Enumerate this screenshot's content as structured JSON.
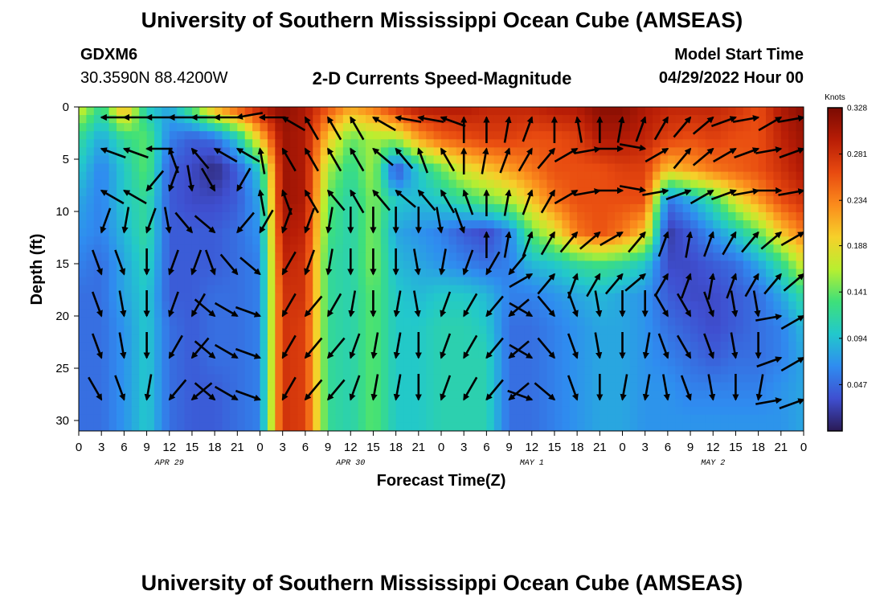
{
  "header": {
    "title": "University of Southern Mississippi Ocean Cube (AMSEAS)",
    "station_id": "GDXM6",
    "station_coords": "30.3590N  88.4200W",
    "chart_title": "2-D Currents Speed-Magnitude",
    "model_start_label": "Model Start Time",
    "model_start_value": "04/29/2022 Hour 00"
  },
  "footer": {
    "title": "University of Southern Mississippi Ocean Cube (AMSEAS)"
  },
  "chart_data": {
    "type": "heatmap",
    "title": "2-D Currents Speed-Magnitude",
    "xlabel": "Forecast Time(Z)",
    "ylabel": "Depth (ft)",
    "x_ticks": [
      "0",
      "3",
      "6",
      "9",
      "12",
      "15",
      "18",
      "21",
      "0",
      "3",
      "6",
      "9",
      "12",
      "15",
      "18",
      "21",
      "0",
      "3",
      "6",
      "9",
      "12",
      "15",
      "18",
      "21",
      "0",
      "3",
      "6",
      "9",
      "12",
      "15",
      "18",
      "21",
      "0"
    ],
    "x_range_hours": [
      0,
      96
    ],
    "day_labels": [
      {
        "label": "APR 29",
        "hour": 12
      },
      {
        "label": "APR 30",
        "hour": 36
      },
      {
        "label": "MAY 1",
        "hour": 60
      },
      {
        "label": "MAY 2",
        "hour": 84
      }
    ],
    "y_ticks": [
      "0",
      "5",
      "10",
      "15",
      "20",
      "25",
      "30"
    ],
    "y_range_ft": [
      0,
      31
    ],
    "y_inverted": true,
    "colorbar": {
      "unit": "Knots",
      "range": [
        0.0,
        0.328
      ],
      "labels": [
        "0.328",
        "0.281",
        "0.234",
        "0.188",
        "0.141",
        "0.094",
        "0.047"
      ],
      "colors": [
        "#2a1a55",
        "#3f4fd0",
        "#2f8cf0",
        "#22c8cc",
        "#3ee07a",
        "#b8ef30",
        "#f6d02a",
        "#fb8b1c",
        "#e84a10",
        "#b81d06",
        "#7a0a02"
      ]
    },
    "speed_grid": {
      "depths_ft": [
        0,
        3,
        6,
        9,
        12,
        15,
        18,
        21,
        24,
        27,
        30
      ],
      "hours": [
        0,
        3,
        6,
        9,
        12,
        15,
        18,
        21,
        24,
        27,
        30,
        33,
        36,
        39,
        42,
        45,
        48,
        51,
        54,
        57,
        60,
        63,
        66,
        69,
        72,
        75,
        78,
        81,
        84,
        87,
        90,
        93,
        96
      ],
      "values": [
        [
          0.18,
          0.12,
          0.22,
          0.1,
          0.08,
          0.14,
          0.22,
          0.26,
          0.3,
          0.32,
          0.3,
          0.26,
          0.22,
          0.24,
          0.28,
          0.3,
          0.3,
          0.3,
          0.29,
          0.29,
          0.29,
          0.3,
          0.3,
          0.32,
          0.32,
          0.3,
          0.29,
          0.29,
          0.29,
          0.28,
          0.26,
          0.3,
          0.32
        ],
        [
          0.12,
          0.08,
          0.12,
          0.14,
          0.06,
          0.04,
          0.05,
          0.1,
          0.2,
          0.31,
          0.3,
          0.2,
          0.14,
          0.16,
          0.16,
          0.22,
          0.25,
          0.26,
          0.27,
          0.27,
          0.26,
          0.26,
          0.27,
          0.3,
          0.3,
          0.29,
          0.27,
          0.26,
          0.27,
          0.26,
          0.26,
          0.29,
          0.31
        ],
        [
          0.1,
          0.06,
          0.1,
          0.14,
          0.04,
          0.03,
          0.01,
          0.04,
          0.1,
          0.31,
          0.3,
          0.16,
          0.12,
          0.16,
          0.03,
          0.1,
          0.14,
          0.18,
          0.2,
          0.22,
          0.24,
          0.26,
          0.26,
          0.26,
          0.27,
          0.27,
          0.2,
          0.22,
          0.24,
          0.25,
          0.26,
          0.28,
          0.3
        ],
        [
          0.08,
          0.06,
          0.1,
          0.12,
          0.04,
          0.03,
          0.03,
          0.04,
          0.08,
          0.31,
          0.3,
          0.14,
          0.11,
          0.15,
          0.1,
          0.09,
          0.1,
          0.12,
          0.14,
          0.16,
          0.2,
          0.24,
          0.26,
          0.26,
          0.26,
          0.26,
          0.05,
          0.08,
          0.12,
          0.18,
          0.22,
          0.26,
          0.28
        ],
        [
          0.07,
          0.06,
          0.09,
          0.12,
          0.04,
          0.04,
          0.04,
          0.05,
          0.07,
          0.3,
          0.29,
          0.13,
          0.11,
          0.15,
          0.08,
          0.07,
          0.06,
          0.04,
          0.03,
          0.06,
          0.14,
          0.18,
          0.24,
          0.26,
          0.24,
          0.2,
          0.02,
          0.04,
          0.07,
          0.1,
          0.14,
          0.2,
          0.24
        ],
        [
          0.06,
          0.05,
          0.08,
          0.11,
          0.04,
          0.04,
          0.04,
          0.05,
          0.06,
          0.29,
          0.28,
          0.12,
          0.11,
          0.15,
          0.09,
          0.08,
          0.07,
          0.06,
          0.05,
          0.06,
          0.09,
          0.1,
          0.12,
          0.13,
          0.12,
          0.1,
          0.03,
          0.03,
          0.04,
          0.05,
          0.08,
          0.12,
          0.18
        ],
        [
          0.05,
          0.05,
          0.08,
          0.1,
          0.04,
          0.04,
          0.05,
          0.05,
          0.06,
          0.28,
          0.28,
          0.12,
          0.11,
          0.14,
          0.1,
          0.09,
          0.1,
          0.1,
          0.09,
          0.06,
          0.06,
          0.07,
          0.08,
          0.09,
          0.08,
          0.07,
          0.04,
          0.03,
          0.03,
          0.04,
          0.05,
          0.08,
          0.12
        ],
        [
          0.05,
          0.05,
          0.07,
          0.1,
          0.05,
          0.04,
          0.05,
          0.05,
          0.06,
          0.28,
          0.27,
          0.12,
          0.11,
          0.14,
          0.1,
          0.1,
          0.11,
          0.11,
          0.1,
          0.05,
          0.05,
          0.06,
          0.07,
          0.08,
          0.08,
          0.07,
          0.05,
          0.04,
          0.03,
          0.04,
          0.05,
          0.06,
          0.09
        ],
        [
          0.05,
          0.05,
          0.07,
          0.1,
          0.05,
          0.04,
          0.05,
          0.05,
          0.06,
          0.28,
          0.27,
          0.12,
          0.11,
          0.14,
          0.1,
          0.1,
          0.11,
          0.11,
          0.11,
          0.05,
          0.05,
          0.06,
          0.07,
          0.08,
          0.08,
          0.07,
          0.06,
          0.05,
          0.04,
          0.05,
          0.05,
          0.06,
          0.08
        ],
        [
          0.05,
          0.05,
          0.07,
          0.1,
          0.05,
          0.04,
          0.04,
          0.05,
          0.06,
          0.28,
          0.27,
          0.12,
          0.11,
          0.14,
          0.1,
          0.1,
          0.11,
          0.11,
          0.11,
          0.05,
          0.05,
          0.06,
          0.07,
          0.08,
          0.08,
          0.07,
          0.07,
          0.06,
          0.06,
          0.06,
          0.06,
          0.07,
          0.08
        ],
        [
          0.05,
          0.05,
          0.07,
          0.1,
          0.05,
          0.04,
          0.04,
          0.05,
          0.06,
          0.28,
          0.27,
          0.12,
          0.11,
          0.14,
          0.1,
          0.1,
          0.11,
          0.11,
          0.11,
          0.05,
          0.05,
          0.06,
          0.07,
          0.08,
          0.08,
          0.07,
          0.07,
          0.07,
          0.07,
          0.07,
          0.07,
          0.07,
          0.08
        ]
      ]
    },
    "vectors": {
      "depths_ft": [
        1,
        4,
        8,
        12,
        16,
        20,
        24,
        28
      ],
      "hours": [
        3,
        6,
        9,
        12,
        15,
        18,
        21,
        24,
        27,
        30,
        33,
        36,
        39,
        42,
        45,
        48,
        51,
        54,
        57,
        60,
        63,
        66,
        69,
        72,
        75,
        78,
        81,
        84,
        87,
        90,
        93,
        96
      ],
      "direction_deg": [
        [
          270,
          270,
          270,
          270,
          270,
          270,
          260,
          270,
          300,
          330,
          330,
          330,
          300,
          280,
          280,
          290,
          0,
          0,
          10,
          20,
          0,
          350,
          0,
          10,
          20,
          30,
          40,
          50,
          70,
          80,
          60,
          80
        ],
        [
          290,
          290,
          270,
          340,
          320,
          300,
          300,
          350,
          330,
          330,
          330,
          330,
          310,
          320,
          340,
          330,
          0,
          10,
          20,
          30,
          40,
          60,
          80,
          90,
          100,
          60,
          40,
          50,
          60,
          70,
          80,
          70
        ],
        [
          300,
          300,
          220,
          200,
          170,
          150,
          210,
          350,
          340,
          330,
          320,
          330,
          320,
          310,
          320,
          330,
          340,
          0,
          10,
          20,
          30,
          60,
          80,
          90,
          100,
          80,
          70,
          60,
          70,
          80,
          90,
          80
        ],
        [
          200,
          190,
          200,
          170,
          140,
          130,
          220,
          210,
          200,
          200,
          190,
          180,
          180,
          180,
          180,
          170,
          160,
          0,
          10,
          20,
          30,
          40,
          50,
          60,
          40,
          20,
          10,
          20,
          30,
          40,
          50,
          60
        ],
        [
          160,
          160,
          180,
          200,
          200,
          160,
          140,
          130,
          210,
          200,
          190,
          180,
          180,
          180,
          170,
          190,
          200,
          210,
          220,
          60,
          40,
          20,
          30,
          40,
          50,
          30,
          20,
          10,
          20,
          30,
          40,
          50
        ],
        [
          160,
          170,
          180,
          200,
          210,
          130,
          120,
          110,
          210,
          220,
          210,
          190,
          180,
          190,
          170,
          200,
          210,
          220,
          230,
          120,
          140,
          160,
          170,
          180,
          180,
          150,
          150,
          160,
          170,
          170,
          80,
          60
        ],
        [
          160,
          170,
          180,
          210,
          220,
          130,
          120,
          110,
          210,
          220,
          220,
          200,
          190,
          190,
          180,
          200,
          210,
          220,
          230,
          120,
          140,
          160,
          170,
          180,
          190,
          160,
          150,
          160,
          170,
          180,
          70,
          60
        ],
        [
          150,
          160,
          190,
          220,
          230,
          130,
          120,
          110,
          210,
          220,
          220,
          200,
          190,
          190,
          180,
          200,
          210,
          220,
          230,
          110,
          130,
          160,
          180,
          190,
          190,
          170,
          160,
          170,
          180,
          190,
          80,
          70
        ]
      ]
    }
  }
}
